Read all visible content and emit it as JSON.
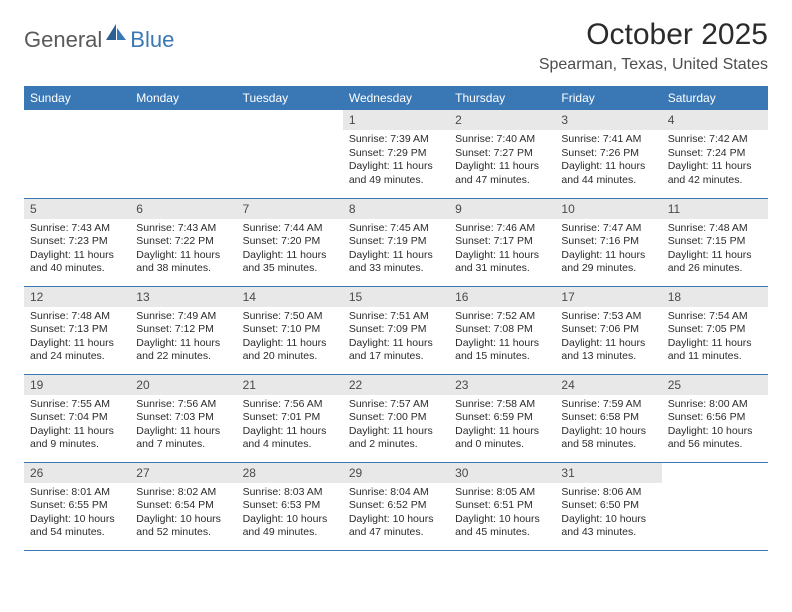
{
  "logo": {
    "general": "General",
    "blue": "Blue"
  },
  "title": "October 2025",
  "location": "Spearman, Texas, United States",
  "day_headers": [
    "Sunday",
    "Monday",
    "Tuesday",
    "Wednesday",
    "Thursday",
    "Friday",
    "Saturday"
  ],
  "colors": {
    "header_bg": "#3a78b5",
    "header_text": "#ffffff",
    "daynum_bg": "#e8e8e8",
    "border": "#3a78b5",
    "logo_gray": "#5a5a5a",
    "logo_blue": "#3a78b5"
  },
  "weeks": [
    [
      {
        "n": "",
        "sunrise": "",
        "sunset": "",
        "daylight": ""
      },
      {
        "n": "",
        "sunrise": "",
        "sunset": "",
        "daylight": ""
      },
      {
        "n": "",
        "sunrise": "",
        "sunset": "",
        "daylight": ""
      },
      {
        "n": "1",
        "sunrise": "Sunrise: 7:39 AM",
        "sunset": "Sunset: 7:29 PM",
        "daylight": "Daylight: 11 hours and 49 minutes."
      },
      {
        "n": "2",
        "sunrise": "Sunrise: 7:40 AM",
        "sunset": "Sunset: 7:27 PM",
        "daylight": "Daylight: 11 hours and 47 minutes."
      },
      {
        "n": "3",
        "sunrise": "Sunrise: 7:41 AM",
        "sunset": "Sunset: 7:26 PM",
        "daylight": "Daylight: 11 hours and 44 minutes."
      },
      {
        "n": "4",
        "sunrise": "Sunrise: 7:42 AM",
        "sunset": "Sunset: 7:24 PM",
        "daylight": "Daylight: 11 hours and 42 minutes."
      }
    ],
    [
      {
        "n": "5",
        "sunrise": "Sunrise: 7:43 AM",
        "sunset": "Sunset: 7:23 PM",
        "daylight": "Daylight: 11 hours and 40 minutes."
      },
      {
        "n": "6",
        "sunrise": "Sunrise: 7:43 AM",
        "sunset": "Sunset: 7:22 PM",
        "daylight": "Daylight: 11 hours and 38 minutes."
      },
      {
        "n": "7",
        "sunrise": "Sunrise: 7:44 AM",
        "sunset": "Sunset: 7:20 PM",
        "daylight": "Daylight: 11 hours and 35 minutes."
      },
      {
        "n": "8",
        "sunrise": "Sunrise: 7:45 AM",
        "sunset": "Sunset: 7:19 PM",
        "daylight": "Daylight: 11 hours and 33 minutes."
      },
      {
        "n": "9",
        "sunrise": "Sunrise: 7:46 AM",
        "sunset": "Sunset: 7:17 PM",
        "daylight": "Daylight: 11 hours and 31 minutes."
      },
      {
        "n": "10",
        "sunrise": "Sunrise: 7:47 AM",
        "sunset": "Sunset: 7:16 PM",
        "daylight": "Daylight: 11 hours and 29 minutes."
      },
      {
        "n": "11",
        "sunrise": "Sunrise: 7:48 AM",
        "sunset": "Sunset: 7:15 PM",
        "daylight": "Daylight: 11 hours and 26 minutes."
      }
    ],
    [
      {
        "n": "12",
        "sunrise": "Sunrise: 7:48 AM",
        "sunset": "Sunset: 7:13 PM",
        "daylight": "Daylight: 11 hours and 24 minutes."
      },
      {
        "n": "13",
        "sunrise": "Sunrise: 7:49 AM",
        "sunset": "Sunset: 7:12 PM",
        "daylight": "Daylight: 11 hours and 22 minutes."
      },
      {
        "n": "14",
        "sunrise": "Sunrise: 7:50 AM",
        "sunset": "Sunset: 7:10 PM",
        "daylight": "Daylight: 11 hours and 20 minutes."
      },
      {
        "n": "15",
        "sunrise": "Sunrise: 7:51 AM",
        "sunset": "Sunset: 7:09 PM",
        "daylight": "Daylight: 11 hours and 17 minutes."
      },
      {
        "n": "16",
        "sunrise": "Sunrise: 7:52 AM",
        "sunset": "Sunset: 7:08 PM",
        "daylight": "Daylight: 11 hours and 15 minutes."
      },
      {
        "n": "17",
        "sunrise": "Sunrise: 7:53 AM",
        "sunset": "Sunset: 7:06 PM",
        "daylight": "Daylight: 11 hours and 13 minutes."
      },
      {
        "n": "18",
        "sunrise": "Sunrise: 7:54 AM",
        "sunset": "Sunset: 7:05 PM",
        "daylight": "Daylight: 11 hours and 11 minutes."
      }
    ],
    [
      {
        "n": "19",
        "sunrise": "Sunrise: 7:55 AM",
        "sunset": "Sunset: 7:04 PM",
        "daylight": "Daylight: 11 hours and 9 minutes."
      },
      {
        "n": "20",
        "sunrise": "Sunrise: 7:56 AM",
        "sunset": "Sunset: 7:03 PM",
        "daylight": "Daylight: 11 hours and 7 minutes."
      },
      {
        "n": "21",
        "sunrise": "Sunrise: 7:56 AM",
        "sunset": "Sunset: 7:01 PM",
        "daylight": "Daylight: 11 hours and 4 minutes."
      },
      {
        "n": "22",
        "sunrise": "Sunrise: 7:57 AM",
        "sunset": "Sunset: 7:00 PM",
        "daylight": "Daylight: 11 hours and 2 minutes."
      },
      {
        "n": "23",
        "sunrise": "Sunrise: 7:58 AM",
        "sunset": "Sunset: 6:59 PM",
        "daylight": "Daylight: 11 hours and 0 minutes."
      },
      {
        "n": "24",
        "sunrise": "Sunrise: 7:59 AM",
        "sunset": "Sunset: 6:58 PM",
        "daylight": "Daylight: 10 hours and 58 minutes."
      },
      {
        "n": "25",
        "sunrise": "Sunrise: 8:00 AM",
        "sunset": "Sunset: 6:56 PM",
        "daylight": "Daylight: 10 hours and 56 minutes."
      }
    ],
    [
      {
        "n": "26",
        "sunrise": "Sunrise: 8:01 AM",
        "sunset": "Sunset: 6:55 PM",
        "daylight": "Daylight: 10 hours and 54 minutes."
      },
      {
        "n": "27",
        "sunrise": "Sunrise: 8:02 AM",
        "sunset": "Sunset: 6:54 PM",
        "daylight": "Daylight: 10 hours and 52 minutes."
      },
      {
        "n": "28",
        "sunrise": "Sunrise: 8:03 AM",
        "sunset": "Sunset: 6:53 PM",
        "daylight": "Daylight: 10 hours and 49 minutes."
      },
      {
        "n": "29",
        "sunrise": "Sunrise: 8:04 AM",
        "sunset": "Sunset: 6:52 PM",
        "daylight": "Daylight: 10 hours and 47 minutes."
      },
      {
        "n": "30",
        "sunrise": "Sunrise: 8:05 AM",
        "sunset": "Sunset: 6:51 PM",
        "daylight": "Daylight: 10 hours and 45 minutes."
      },
      {
        "n": "31",
        "sunrise": "Sunrise: 8:06 AM",
        "sunset": "Sunset: 6:50 PM",
        "daylight": "Daylight: 10 hours and 43 minutes."
      },
      {
        "n": "",
        "sunrise": "",
        "sunset": "",
        "daylight": ""
      }
    ]
  ]
}
